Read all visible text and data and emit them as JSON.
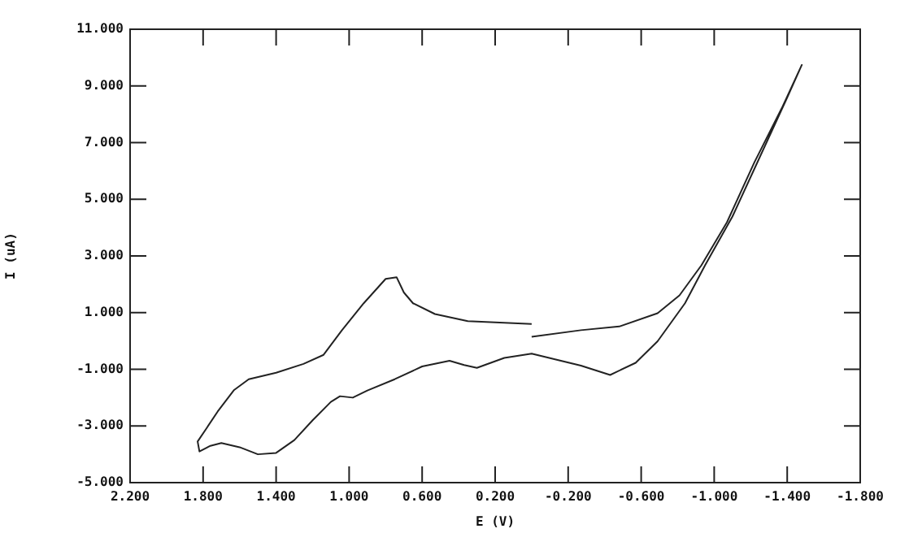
{
  "chart_data": {
    "type": "line",
    "xlabel": "E (V)",
    "ylabel": "I (uA)",
    "marker": "none",
    "line_style": "solid",
    "xlim": [
      2.2,
      -1.8
    ],
    "xticks": [
      {
        "value": 2.2,
        "label": "2.200"
      },
      {
        "value": 1.8,
        "label": "1.800"
      },
      {
        "value": 1.4,
        "label": "1.400"
      },
      {
        "value": 1.0,
        "label": "1.000"
      },
      {
        "value": 0.6,
        "label": "0.600"
      },
      {
        "value": 0.2,
        "label": "0.200"
      },
      {
        "value": -0.2,
        "label": "-0.200"
      },
      {
        "value": -0.6,
        "label": "-0.600"
      },
      {
        "value": -1.0,
        "label": "-1.000"
      },
      {
        "value": -1.4,
        "label": "-1.400"
      },
      {
        "value": -1.8,
        "label": "-1.800"
      }
    ],
    "ylim": [
      -5,
      11
    ],
    "yticks": [
      {
        "value": -5,
        "label": "-5.000"
      },
      {
        "value": -3,
        "label": "-3.000"
      },
      {
        "value": -1,
        "label": "-1.000"
      },
      {
        "value": 1,
        "label": "1.000"
      },
      {
        "value": 3,
        "label": "3.000"
      },
      {
        "value": 5,
        "label": "5.000"
      },
      {
        "value": 7,
        "label": "7.000"
      },
      {
        "value": 9,
        "label": "9.000"
      },
      {
        "value": 11,
        "label": "11.000"
      }
    ],
    "series": [
      {
        "color": "#222222",
        "x": [
          0.0,
          -0.27,
          -0.48,
          -0.69,
          -0.81,
          -0.93,
          -1.07,
          -1.22,
          -1.37,
          -1.48,
          -1.4,
          -1.25,
          -1.1,
          -0.95,
          -0.84,
          -0.69,
          -0.57,
          -0.43,
          -0.27,
          0.0,
          0.15,
          0.3,
          0.37,
          0.45,
          0.6,
          0.75,
          0.9,
          0.98,
          1.05,
          1.1,
          1.2,
          1.3,
          1.4,
          1.5,
          1.6,
          1.7,
          1.76,
          1.82,
          1.83,
          1.78,
          1.72,
          1.63,
          1.55,
          1.4,
          1.25,
          1.14,
          1.04,
          0.92,
          0.8,
          0.74,
          0.7,
          0.65,
          0.53,
          0.35,
          0.15,
          0.0
        ],
        "values": [
          0.15,
          0.38,
          0.51,
          0.98,
          1.61,
          2.67,
          4.19,
          6.3,
          8.21,
          9.74,
          8.59,
          6.49,
          4.39,
          2.67,
          1.33,
          -0.01,
          -0.77,
          -1.2,
          -0.87,
          -0.45,
          -0.6,
          -0.95,
          -0.85,
          -0.7,
          -0.9,
          -1.35,
          -1.75,
          -2.0,
          -1.95,
          -2.15,
          -2.8,
          -3.5,
          -3.95,
          -4.0,
          -3.75,
          -3.6,
          -3.7,
          -3.9,
          -3.55,
          -3.07,
          -2.49,
          -1.73,
          -1.35,
          -1.12,
          -0.81,
          -0.49,
          0.37,
          1.33,
          2.19,
          2.25,
          1.71,
          1.33,
          0.95,
          0.7,
          0.64,
          0.6
        ]
      }
    ]
  }
}
